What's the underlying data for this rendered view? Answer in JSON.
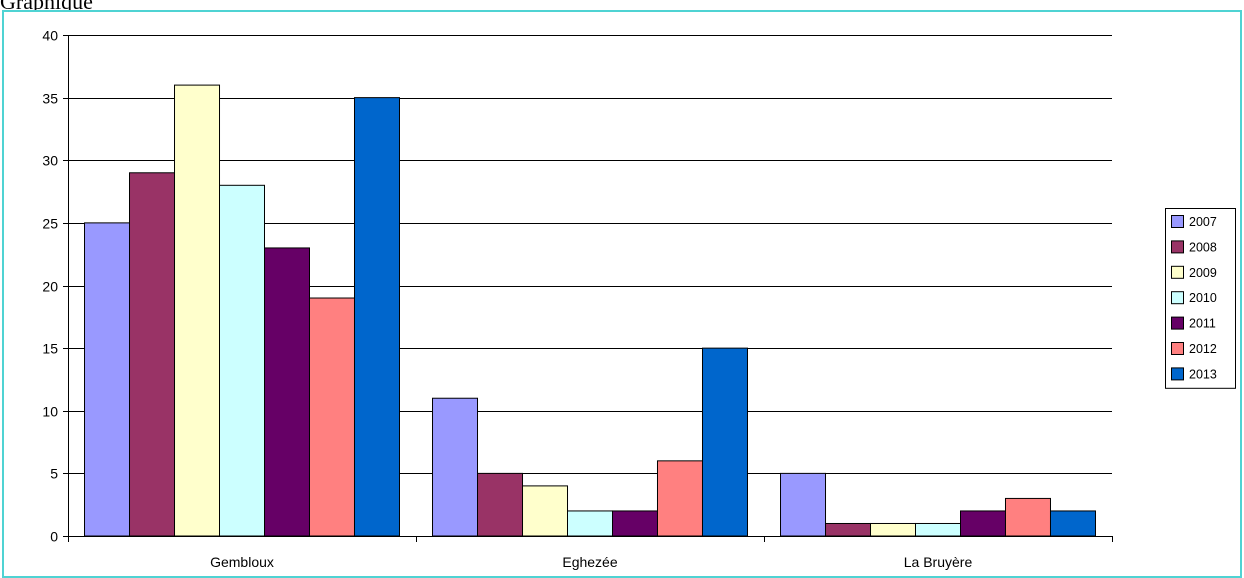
{
  "page": {
    "heading": "Graphique"
  },
  "chart_data": {
    "type": "bar",
    "categories": [
      "Gembloux",
      "Eghezée",
      "La Bruyère"
    ],
    "series": [
      {
        "name": "2007",
        "color": "#9999ff",
        "values": [
          25,
          11,
          5
        ]
      },
      {
        "name": "2008",
        "color": "#993366",
        "values": [
          29,
          5,
          1
        ]
      },
      {
        "name": "2009",
        "color": "#ffffcc",
        "values": [
          36,
          4,
          1
        ]
      },
      {
        "name": "2010",
        "color": "#ccffff",
        "values": [
          28,
          2,
          1
        ]
      },
      {
        "name": "2011",
        "color": "#660066",
        "values": [
          23,
          2,
          2
        ]
      },
      {
        "name": "2012",
        "color": "#ff8080",
        "values": [
          19,
          6,
          3
        ]
      },
      {
        "name": "2013",
        "color": "#0066cc",
        "values": [
          35,
          15,
          2
        ]
      }
    ],
    "ylim": [
      0,
      40
    ],
    "yticks": [
      0,
      5,
      10,
      15,
      20,
      25,
      30,
      35,
      40
    ],
    "grid": true,
    "legend": "right"
  }
}
